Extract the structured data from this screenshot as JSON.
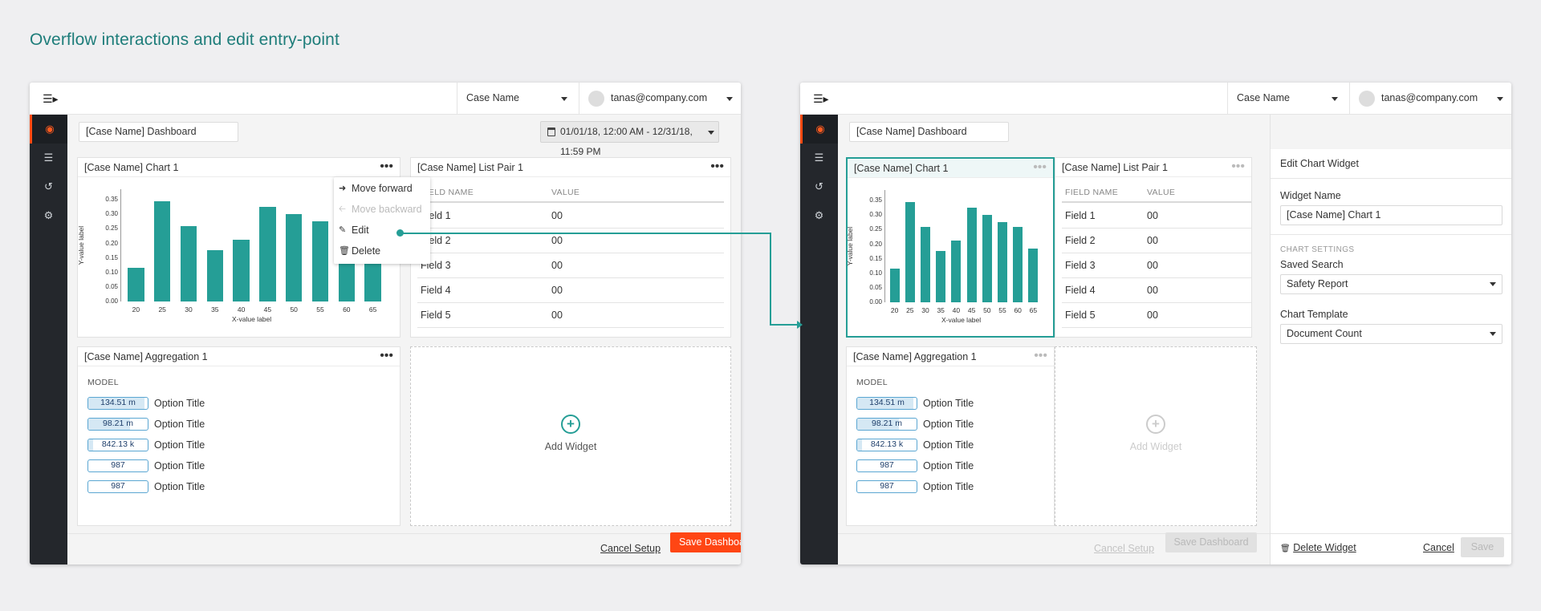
{
  "heading": "Overflow interactions and edit entry-point",
  "topbar": {
    "case_select": "Case Name",
    "user_select": "tanas@company.com"
  },
  "dashboard": {
    "name": "[Case Name] Dashboard",
    "date_range": "01/01/18, 12:00 AM - 12/31/18, 11:59 PM"
  },
  "chart_widget": {
    "title": "[Case Name] Chart 1",
    "ytick_labels": [
      "0.35",
      "0.30",
      "0.25",
      "0.20",
      "0.15",
      "0.10",
      "0.05",
      "0.00"
    ],
    "ylabel": "Y-value label",
    "xlabel": "X-value label"
  },
  "chart_data": {
    "type": "bar",
    "categories": [
      "20",
      "25",
      "30",
      "35",
      "40",
      "45",
      "50",
      "55",
      "60",
      "65"
    ],
    "values": [
      0.115,
      0.345,
      0.26,
      0.178,
      0.212,
      0.325,
      0.3,
      0.275,
      0.26,
      0.185
    ],
    "title": "[Case Name] Chart 1",
    "xlabel": "X-value label",
    "ylabel": "Y-value label",
    "ylim": [
      0,
      0.37
    ],
    "color": "#259e96"
  },
  "context_menu": {
    "items": [
      {
        "label": "Move forward",
        "icon": "arrow-right-icon",
        "disabled": false
      },
      {
        "label": "Move backward",
        "icon": "arrow-left-icon",
        "disabled": true
      },
      {
        "label": "Edit",
        "icon": "pencil-icon",
        "disabled": false
      },
      {
        "label": "Delete",
        "icon": "trash-icon",
        "disabled": false
      }
    ]
  },
  "list_widget": {
    "title": "[Case Name] List Pair 1",
    "col_field": "FIELD NAME",
    "col_value": "VALUE",
    "rows": [
      {
        "field": "Field 1",
        "value": "00"
      },
      {
        "field": "Field 2",
        "value": "00"
      },
      {
        "field": "Field 3",
        "value": "00"
      },
      {
        "field": "Field 4",
        "value": "00"
      },
      {
        "field": "Field 5",
        "value": "00"
      }
    ]
  },
  "agg_widget": {
    "title": "[Case Name] Aggregation 1",
    "model_label": "MODEL",
    "rows": [
      {
        "value": "134.51 m",
        "fill": 0.95,
        "title": "Option Title"
      },
      {
        "value": "98.21 m",
        "fill": 0.7,
        "title": "Option Title"
      },
      {
        "value": "842.13 k",
        "fill": 0.08,
        "title": "Option Title"
      },
      {
        "value": "987",
        "fill": 0,
        "title": "Option Title"
      },
      {
        "value": "987",
        "fill": 0,
        "title": "Option Title"
      }
    ]
  },
  "add_widget": {
    "label": "Add Widget"
  },
  "footer": {
    "cancel_setup": "Cancel Setup",
    "save_dashboard": "Save Dashboard"
  },
  "edit_panel": {
    "title": "Edit Chart Widget",
    "widget_name_label": "Widget Name",
    "widget_name_value": "[Case Name] Chart 1",
    "chart_settings_label": "CHART SETTINGS",
    "saved_search_label": "Saved Search",
    "saved_search_value": "Safety Report",
    "chart_template_label": "Chart Template",
    "chart_template_value": "Document Count",
    "delete_label": "Delete Widget",
    "cancel_label": "Cancel",
    "save_label": "Save"
  }
}
